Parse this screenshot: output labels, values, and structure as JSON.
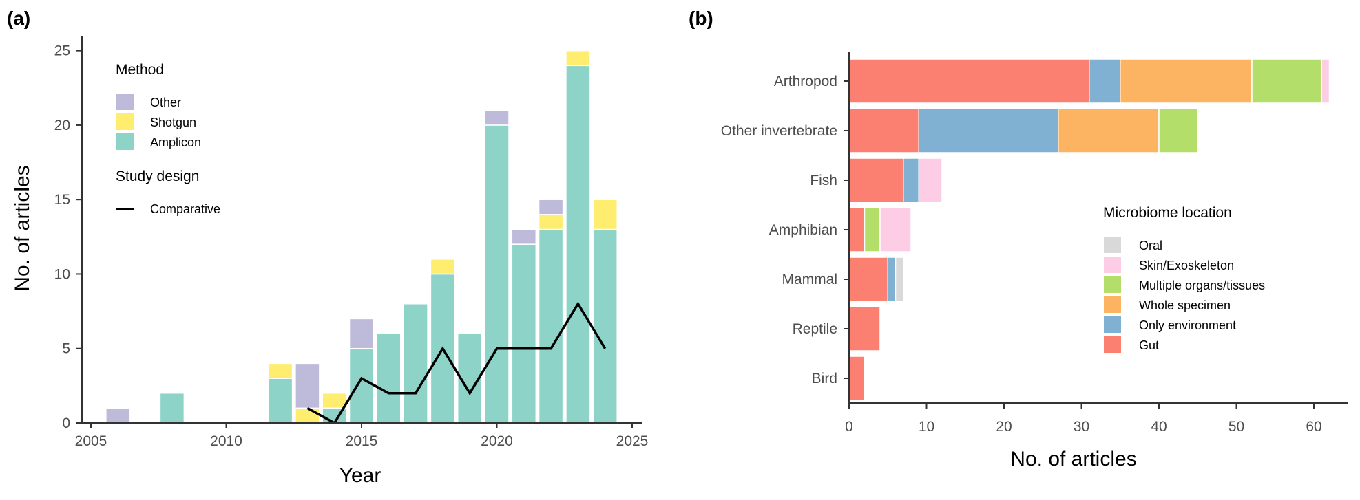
{
  "colors": {
    "Other": "#bebada",
    "Shotgun": "#ffed6f",
    "Amplicon": "#8dd3c7",
    "Comparative": "#000000",
    "Oral": "#d9d9d9",
    "Skin/Exoskeleton": "#fccde5",
    "Multiple organs/tissues": "#b3de69",
    "Whole specimen": "#fdb462",
    "Only environment": "#80b1d3",
    "Gut": "#fb8072"
  },
  "chart_data": [
    {
      "panel": "(a)",
      "type": "bar",
      "stacked": true,
      "xlabel": "Year",
      "ylabel": "No. of articles",
      "xlim": [
        2005,
        2025
      ],
      "ylim": [
        0,
        26
      ],
      "xticks": [
        2005,
        2010,
        2015,
        2020,
        2025
      ],
      "yticks": [
        0,
        5,
        10,
        15,
        20,
        25
      ],
      "grid": false,
      "x": [
        2006,
        2008,
        2012,
        2013,
        2014,
        2015,
        2016,
        2017,
        2018,
        2019,
        2020,
        2021,
        2022,
        2023,
        2024
      ],
      "series": [
        {
          "name": "Amplicon",
          "values": [
            0,
            2,
            3,
            0,
            1,
            5,
            6,
            8,
            10,
            6,
            20,
            12,
            13,
            24,
            13
          ]
        },
        {
          "name": "Shotgun",
          "values": [
            0,
            0,
            1,
            1,
            1,
            0,
            0,
            0,
            1,
            0,
            0,
            0,
            1,
            1,
            2
          ]
        },
        {
          "name": "Other",
          "values": [
            1,
            0,
            0,
            3,
            0,
            2,
            0,
            0,
            0,
            0,
            1,
            1,
            1,
            0,
            0
          ]
        }
      ],
      "line": {
        "name": "Comparative",
        "x": [
          2013,
          2014,
          2015,
          2016,
          2017,
          2018,
          2019,
          2020,
          2021,
          2022,
          2023,
          2024
        ],
        "values": [
          1,
          0,
          3,
          2,
          2,
          5,
          2,
          5,
          5,
          5,
          8,
          5
        ]
      },
      "legend": {
        "position": "top-left",
        "method_title": "Method",
        "method_items": [
          "Other",
          "Shotgun",
          "Amplicon"
        ],
        "design_title": "Study design",
        "design_items": [
          "Comparative"
        ]
      }
    },
    {
      "panel": "(b)",
      "type": "bar",
      "orientation": "horizontal",
      "stacked": true,
      "xlabel": "No. of articles",
      "ylabel": "",
      "xlim": [
        0,
        63
      ],
      "xticks": [
        0,
        10,
        20,
        30,
        40,
        50,
        60
      ],
      "grid": false,
      "categories": [
        "Arthropod",
        "Other invertebrate",
        "Fish",
        "Amphibian",
        "Mammal",
        "Reptile",
        "Bird"
      ],
      "series": [
        {
          "name": "Gut",
          "values": [
            31,
            9,
            7,
            2,
            5,
            4,
            2
          ]
        },
        {
          "name": "Only environment",
          "values": [
            4,
            18,
            2,
            0,
            1,
            0,
            0
          ]
        },
        {
          "name": "Whole specimen",
          "values": [
            17,
            13,
            0,
            0,
            0,
            0,
            0
          ]
        },
        {
          "name": "Multiple organs/tissues",
          "values": [
            9,
            5,
            0,
            2,
            0,
            0,
            0
          ]
        },
        {
          "name": "Skin/Exoskeleton",
          "values": [
            1,
            0,
            3,
            4,
            0,
            0,
            0
          ]
        },
        {
          "name": "Oral",
          "values": [
            0,
            0,
            0,
            0,
            1,
            0,
            0
          ]
        }
      ],
      "legend": {
        "position": "center-right",
        "title": "Microbiome location",
        "items": [
          "Oral",
          "Skin/Exoskeleton",
          "Multiple organs/tissues",
          "Whole specimen",
          "Only environment",
          "Gut"
        ]
      }
    }
  ]
}
